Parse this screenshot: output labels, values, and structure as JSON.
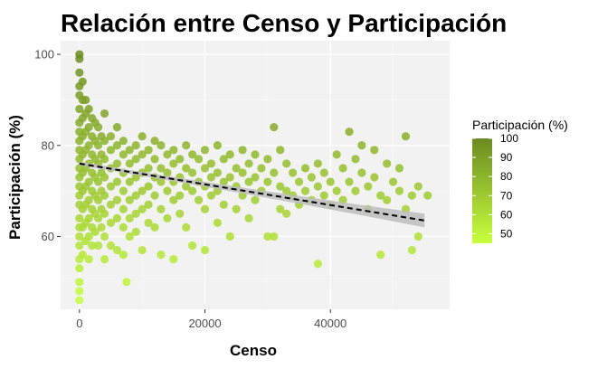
{
  "chart_data": {
    "type": "scatter",
    "title": "Relación entre Censo y Participación",
    "xlabel": "Censo",
    "ylabel": "Participación (%)",
    "xlim": [
      -3000,
      59000
    ],
    "ylim": [
      44,
      103
    ],
    "x_ticks": [
      0,
      20000,
      40000
    ],
    "x_tick_labels": [
      "0",
      "20000",
      "40000"
    ],
    "y_ticks": [
      60,
      80,
      100
    ],
    "y_tick_labels": [
      "60",
      "80",
      "100"
    ],
    "grid": true,
    "legend": {
      "title": "Participación (%)",
      "position": "right",
      "min": 45,
      "max": 100,
      "ticks": [
        100,
        90,
        80,
        70,
        60,
        50
      ],
      "tick_labels": [
        "100",
        "90",
        "80",
        "70",
        "60",
        "50"
      ],
      "color_low": "#c8ff3c",
      "color_high": "#6b8a22"
    },
    "trend": {
      "x": [
        0,
        55000
      ],
      "y": [
        76,
        63.5
      ],
      "band_start": 0.4,
      "band_end": 1.5,
      "color": "#000000",
      "band_color": "#bdbdbd"
    },
    "points": [
      [
        0,
        100
      ],
      [
        0,
        99
      ],
      [
        0,
        96
      ],
      [
        0,
        93
      ],
      [
        0,
        91
      ],
      [
        0,
        88
      ],
      [
        0,
        85
      ],
      [
        0,
        83
      ],
      [
        0,
        81
      ],
      [
        0,
        79
      ],
      [
        0,
        77
      ],
      [
        0,
        75
      ],
      [
        0,
        73
      ],
      [
        0,
        71
      ],
      [
        0,
        69
      ],
      [
        0,
        67
      ],
      [
        0,
        64
      ],
      [
        0,
        62
      ],
      [
        0,
        60
      ],
      [
        0,
        58
      ],
      [
        0,
        55
      ],
      [
        0,
        53
      ],
      [
        0,
        50
      ],
      [
        0,
        48
      ],
      [
        0,
        46
      ],
      [
        500,
        94
      ],
      [
        500,
        90
      ],
      [
        500,
        86
      ],
      [
        500,
        82
      ],
      [
        500,
        78
      ],
      [
        500,
        74
      ],
      [
        500,
        70
      ],
      [
        500,
        66
      ],
      [
        500,
        62
      ],
      [
        500,
        56
      ],
      [
        1000,
        90
      ],
      [
        1000,
        87
      ],
      [
        1000,
        83
      ],
      [
        1000,
        79
      ],
      [
        1000,
        75
      ],
      [
        1000,
        71
      ],
      [
        1000,
        67
      ],
      [
        1000,
        63
      ],
      [
        1000,
        59
      ],
      [
        1500,
        88
      ],
      [
        1500,
        84
      ],
      [
        1500,
        80
      ],
      [
        1500,
        76
      ],
      [
        1500,
        72
      ],
      [
        1500,
        68
      ],
      [
        1500,
        64
      ],
      [
        1500,
        60
      ],
      [
        1500,
        55
      ],
      [
        2000,
        86
      ],
      [
        2000,
        82
      ],
      [
        2000,
        78
      ],
      [
        2000,
        74
      ],
      [
        2000,
        70
      ],
      [
        2000,
        66
      ],
      [
        2000,
        62
      ],
      [
        2000,
        58
      ],
      [
        2500,
        85
      ],
      [
        2500,
        81
      ],
      [
        2500,
        77
      ],
      [
        2500,
        73
      ],
      [
        2500,
        69
      ],
      [
        2500,
        65
      ],
      [
        2500,
        61
      ],
      [
        3000,
        84
      ],
      [
        3000,
        80
      ],
      [
        3000,
        76
      ],
      [
        3000,
        72
      ],
      [
        3000,
        68
      ],
      [
        3000,
        64
      ],
      [
        3000,
        58
      ],
      [
        3500,
        82
      ],
      [
        3500,
        78
      ],
      [
        3500,
        74
      ],
      [
        3500,
        70
      ],
      [
        3500,
        66
      ],
      [
        3500,
        62
      ],
      [
        4000,
        87
      ],
      [
        4000,
        81
      ],
      [
        4000,
        77
      ],
      [
        4000,
        73
      ],
      [
        4000,
        69
      ],
      [
        4000,
        65
      ],
      [
        4000,
        60
      ],
      [
        4000,
        55
      ],
      [
        5000,
        82
      ],
      [
        5000,
        79
      ],
      [
        5000,
        75
      ],
      [
        5000,
        71
      ],
      [
        5000,
        67
      ],
      [
        5000,
        63
      ],
      [
        5000,
        58
      ],
      [
        6000,
        84
      ],
      [
        6000,
        80
      ],
      [
        6000,
        76
      ],
      [
        6000,
        72
      ],
      [
        6000,
        68
      ],
      [
        6000,
        64
      ],
      [
        6000,
        57
      ],
      [
        7000,
        81
      ],
      [
        7000,
        78
      ],
      [
        7000,
        74
      ],
      [
        7000,
        70
      ],
      [
        7000,
        66
      ],
      [
        7000,
        62
      ],
      [
        7000,
        56
      ],
      [
        7500,
        50
      ],
      [
        8000,
        79
      ],
      [
        8000,
        76
      ],
      [
        8000,
        72
      ],
      [
        8000,
        68
      ],
      [
        8000,
        64
      ],
      [
        8000,
        60
      ],
      [
        9000,
        80
      ],
      [
        9000,
        77
      ],
      [
        9000,
        73
      ],
      [
        9000,
        69
      ],
      [
        9000,
        65
      ],
      [
        9000,
        61
      ],
      [
        10000,
        82
      ],
      [
        10000,
        78
      ],
      [
        10000,
        74
      ],
      [
        10000,
        70
      ],
      [
        10000,
        66
      ],
      [
        10000,
        57
      ],
      [
        11000,
        79
      ],
      [
        11000,
        75
      ],
      [
        11000,
        71
      ],
      [
        11000,
        67
      ],
      [
        11000,
        63
      ],
      [
        12000,
        81
      ],
      [
        12000,
        77
      ],
      [
        12000,
        73
      ],
      [
        12000,
        69
      ],
      [
        12000,
        62
      ],
      [
        13000,
        80
      ],
      [
        13000,
        75
      ],
      [
        13000,
        72
      ],
      [
        13000,
        66
      ],
      [
        13000,
        56
      ],
      [
        14000,
        78
      ],
      [
        14000,
        74
      ],
      [
        14000,
        70
      ],
      [
        14000,
        64
      ],
      [
        15000,
        79
      ],
      [
        15000,
        76
      ],
      [
        15000,
        72
      ],
      [
        15000,
        68
      ],
      [
        15000,
        55
      ],
      [
        16000,
        77
      ],
      [
        16000,
        73
      ],
      [
        16000,
        69
      ],
      [
        16000,
        65
      ],
      [
        17000,
        80
      ],
      [
        17000,
        75
      ],
      [
        17000,
        71
      ],
      [
        17000,
        62
      ],
      [
        18000,
        78
      ],
      [
        18000,
        74
      ],
      [
        18000,
        70
      ],
      [
        18000,
        58
      ],
      [
        19000,
        77
      ],
      [
        19000,
        72
      ],
      [
        19000,
        68
      ],
      [
        20000,
        79
      ],
      [
        20000,
        75
      ],
      [
        20000,
        71
      ],
      [
        20000,
        66
      ],
      [
        20000,
        57
      ],
      [
        21000,
        76
      ],
      [
        21000,
        73
      ],
      [
        21000,
        69
      ],
      [
        22000,
        80
      ],
      [
        22000,
        74
      ],
      [
        22000,
        70
      ],
      [
        22000,
        63
      ],
      [
        23000,
        77
      ],
      [
        23000,
        72
      ],
      [
        23000,
        67
      ],
      [
        24000,
        78
      ],
      [
        24000,
        73
      ],
      [
        24000,
        60
      ],
      [
        25000,
        75
      ],
      [
        25000,
        71
      ],
      [
        25000,
        66
      ],
      [
        26000,
        79
      ],
      [
        26000,
        74
      ],
      [
        26000,
        69
      ],
      [
        27000,
        76
      ],
      [
        27000,
        72
      ],
      [
        27000,
        64
      ],
      [
        28000,
        78
      ],
      [
        28000,
        73
      ],
      [
        28000,
        68
      ],
      [
        29000,
        75
      ],
      [
        29000,
        70
      ],
      [
        30000,
        77
      ],
      [
        30000,
        72
      ],
      [
        30000,
        60
      ],
      [
        31000,
        84
      ],
      [
        31000,
        74
      ],
      [
        31000,
        60
      ],
      [
        32000,
        79
      ],
      [
        32000,
        71
      ],
      [
        32000,
        66
      ],
      [
        33000,
        76
      ],
      [
        33000,
        70
      ],
      [
        33000,
        65
      ],
      [
        34000,
        74
      ],
      [
        34000,
        69
      ],
      [
        35000,
        72
      ],
      [
        35000,
        67
      ],
      [
        36000,
        75
      ],
      [
        36000,
        70
      ],
      [
        37000,
        73
      ],
      [
        37000,
        68
      ],
      [
        38000,
        54
      ],
      [
        38000,
        71
      ],
      [
        38000,
        76
      ],
      [
        39000,
        74
      ],
      [
        39000,
        69
      ],
      [
        40000,
        72
      ],
      [
        40000,
        67
      ],
      [
        41000,
        78
      ],
      [
        41000,
        70
      ],
      [
        42000,
        75
      ],
      [
        42000,
        68
      ],
      [
        43000,
        83
      ],
      [
        43000,
        72
      ],
      [
        44000,
        77
      ],
      [
        44000,
        70
      ],
      [
        45000,
        80
      ],
      [
        45000,
        74
      ],
      [
        46000,
        71
      ],
      [
        46000,
        66
      ],
      [
        47000,
        79
      ],
      [
        47000,
        73
      ],
      [
        48000,
        56
      ],
      [
        48000,
        69
      ],
      [
        49000,
        76
      ],
      [
        49000,
        68
      ],
      [
        50000,
        72
      ],
      [
        51000,
        70
      ],
      [
        51000,
        75
      ],
      [
        52000,
        82
      ],
      [
        52000,
        66
      ],
      [
        53000,
        57
      ],
      [
        53000,
        69
      ],
      [
        54000,
        71
      ],
      [
        54000,
        60
      ],
      [
        55500,
        69
      ]
    ]
  }
}
